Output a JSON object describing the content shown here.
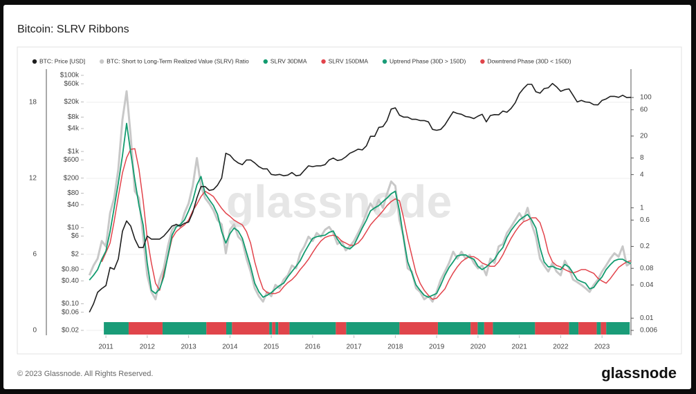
{
  "chart_data": {
    "type": "line",
    "title": "Bitcoin: SLRV Ribbons",
    "watermark": "glassnode",
    "footer": "© 2023 Glassnode. All Rights Reserved.",
    "logo": "glassnode",
    "xlim": [
      2010.53,
      2023.7
    ],
    "xticks": [
      2011,
      2012,
      2013,
      2014,
      2015,
      2016,
      2017,
      2018,
      2019,
      2020,
      2021,
      2022,
      2023
    ],
    "ylim": [
      0.0149,
      145600
    ],
    "log_y": true,
    "yticks": [
      {
        "value": 100000,
        "label": "$100k"
      },
      {
        "value": 60000,
        "label": "$60k"
      },
      {
        "value": 20000,
        "label": "$20k"
      },
      {
        "value": 8000,
        "label": "$8k"
      },
      {
        "value": 4000,
        "label": "$4k"
      },
      {
        "value": 1000,
        "label": "$1k"
      },
      {
        "value": 600,
        "label": "$600"
      },
      {
        "value": 200,
        "label": "$200"
      },
      {
        "value": 80,
        "label": "$80"
      },
      {
        "value": 40,
        "label": "$40"
      },
      {
        "value": 10,
        "label": "$10"
      },
      {
        "value": 6,
        "label": "$6"
      },
      {
        "value": 2,
        "label": "$2"
      },
      {
        "value": 0.8,
        "label": "$0.80"
      },
      {
        "value": 0.4,
        "label": "$0.40"
      },
      {
        "value": 0.1,
        "label": "$0.10"
      },
      {
        "value": 0.06,
        "label": "$0.06"
      },
      {
        "value": 0.02,
        "label": "$0.02"
      }
    ],
    "y2lim": [
      0.0049,
      327
    ],
    "log_y2": true,
    "y2ticks": [
      100,
      60,
      20,
      8,
      4,
      1,
      0.6,
      0.2,
      0.08,
      0.04,
      0.01,
      0.006
    ],
    "y3lim": [
      -0.38,
      20.62
    ],
    "y3ticks": [
      0,
      6,
      12,
      18
    ],
    "grid": true,
    "legend": "top",
    "x": [
      2010.6,
      2010.7,
      2010.8,
      2010.9,
      2011.0,
      2011.1,
      2011.2,
      2011.3,
      2011.4,
      2011.5,
      2011.6,
      2011.7,
      2011.8,
      2011.9,
      2012.0,
      2012.1,
      2012.2,
      2012.3,
      2012.4,
      2012.5,
      2012.6,
      2012.7,
      2012.8,
      2012.9,
      2013.0,
      2013.1,
      2013.2,
      2013.3,
      2013.4,
      2013.5,
      2013.6,
      2013.7,
      2013.8,
      2013.9,
      2014.0,
      2014.1,
      2014.2,
      2014.3,
      2014.4,
      2014.5,
      2014.6,
      2014.7,
      2014.8,
      2014.9,
      2015.0,
      2015.1,
      2015.2,
      2015.3,
      2015.4,
      2015.5,
      2015.6,
      2015.7,
      2015.8,
      2015.9,
      2016.0,
      2016.1,
      2016.2,
      2016.3,
      2016.4,
      2016.5,
      2016.6,
      2016.7,
      2016.8,
      2016.9,
      2017.0,
      2017.1,
      2017.2,
      2017.3,
      2017.4,
      2017.5,
      2017.6,
      2017.7,
      2017.8,
      2017.9,
      2018.0,
      2018.1,
      2018.2,
      2018.3,
      2018.4,
      2018.5,
      2018.6,
      2018.7,
      2018.8,
      2018.9,
      2019.0,
      2019.1,
      2019.2,
      2019.3,
      2019.4,
      2019.5,
      2019.6,
      2019.7,
      2019.8,
      2019.9,
      2020.0,
      2020.1,
      2020.2,
      2020.3,
      2020.4,
      2020.5,
      2020.6,
      2020.7,
      2020.8,
      2020.9,
      2021.0,
      2021.1,
      2021.2,
      2021.3,
      2021.4,
      2021.5,
      2021.6,
      2021.7,
      2021.8,
      2021.9,
      2022.0,
      2022.1,
      2022.2,
      2022.3,
      2022.4,
      2022.5,
      2022.6,
      2022.7,
      2022.8,
      2022.9,
      2023.0,
      2023.1,
      2023.2,
      2023.3,
      2023.4,
      2023.5,
      2023.6,
      2023.7
    ],
    "series": [
      {
        "name": "BTC: Price [USD]",
        "color": "#1e1e1e",
        "axis": "y",
        "values": [
          0.06,
          0.1,
          0.2,
          0.25,
          0.3,
          0.9,
          0.8,
          1.5,
          8,
          15,
          11,
          5,
          3,
          3,
          6,
          5,
          5,
          5,
          6,
          8,
          11,
          12,
          11,
          13,
          14,
          25,
          60,
          120,
          120,
          95,
          100,
          130,
          200,
          900,
          800,
          600,
          500,
          450,
          600,
          600,
          500,
          400,
          350,
          350,
          250,
          240,
          250,
          230,
          240,
          280,
          230,
          240,
          320,
          420,
          400,
          420,
          420,
          450,
          600,
          670,
          580,
          610,
          720,
          900,
          1000,
          1150,
          1100,
          1400,
          2500,
          2500,
          4300,
          4500,
          6500,
          13000,
          14000,
          9000,
          8000,
          8000,
          7000,
          7000,
          6500,
          6500,
          6000,
          3800,
          3600,
          3800,
          5000,
          7500,
          11000,
          10000,
          9500,
          8300,
          8000,
          7300,
          8500,
          9500,
          6000,
          8800,
          9300,
          9200,
          11500,
          10700,
          13500,
          19000,
          33000,
          45000,
          58000,
          58000,
          37000,
          34000,
          45000,
          47000,
          61000,
          50000,
          38000,
          42000,
          44000,
          30000,
          20000,
          22000,
          20000,
          19500,
          17000,
          16800,
          22000,
          24000,
          28000,
          28000,
          26500,
          30000,
          26000,
          26500
        ]
      },
      {
        "name": "BTC: Short to Long-Term Realized Value (SLRV) Ratio",
        "color": "#c8c8c8",
        "axis": "y2",
        "values": [
          0.06,
          0.09,
          0.12,
          0.25,
          0.2,
          0.8,
          1.5,
          5,
          40,
          130,
          20,
          2,
          1.5,
          0.3,
          0.06,
          0.03,
          0.022,
          0.05,
          0.08,
          0.2,
          0.4,
          0.5,
          0.45,
          0.8,
          1.2,
          2.5,
          8,
          2.5,
          1.5,
          1.2,
          0.9,
          0.6,
          0.5,
          0.15,
          0.4,
          0.5,
          0.3,
          0.25,
          0.12,
          0.07,
          0.035,
          0.025,
          0.02,
          0.03,
          0.025,
          0.04,
          0.035,
          0.05,
          0.06,
          0.09,
          0.08,
          0.15,
          0.2,
          0.3,
          0.25,
          0.35,
          0.3,
          0.4,
          0.45,
          0.35,
          0.22,
          0.25,
          0.17,
          0.2,
          0.25,
          0.35,
          0.5,
          0.8,
          1.2,
          0.9,
          1.4,
          1.0,
          1.8,
          3,
          2.5,
          0.6,
          0.3,
          0.08,
          0.07,
          0.035,
          0.03,
          0.022,
          0.025,
          0.02,
          0.03,
          0.05,
          0.07,
          0.1,
          0.16,
          0.12,
          0.16,
          0.12,
          0.14,
          0.1,
          0.08,
          0.09,
          0.06,
          0.12,
          0.1,
          0.2,
          0.22,
          0.35,
          0.45,
          0.6,
          0.8,
          0.6,
          1.0,
          0.5,
          0.3,
          0.12,
          0.09,
          0.07,
          0.1,
          0.07,
          0.06,
          0.11,
          0.08,
          0.05,
          0.045,
          0.04,
          0.035,
          0.03,
          0.04,
          0.05,
          0.07,
          0.09,
          0.12,
          0.15,
          0.13,
          0.2,
          0.09,
          0.1
        ]
      },
      {
        "name": "SLRV 30DMA",
        "color": "#129b6f",
        "axis": "y2",
        "values": [
          0.049,
          0.06,
          0.076,
          0.117,
          0.165,
          0.37,
          1.0,
          2.8,
          8.8,
          34,
          10,
          3.2,
          1.1,
          0.49,
          0.1,
          0.032,
          0.028,
          0.034,
          0.056,
          0.135,
          0.32,
          0.45,
          0.5,
          0.6,
          0.88,
          1.35,
          2.6,
          3.7,
          1.8,
          1.4,
          1.1,
          0.76,
          0.37,
          0.23,
          0.34,
          0.43,
          0.38,
          0.28,
          0.155,
          0.087,
          0.043,
          0.03,
          0.024,
          0.026,
          0.029,
          0.034,
          0.039,
          0.043,
          0.056,
          0.07,
          0.087,
          0.11,
          0.155,
          0.21,
          0.28,
          0.3,
          0.31,
          0.32,
          0.36,
          0.38,
          0.27,
          0.21,
          0.19,
          0.18,
          0.21,
          0.3,
          0.43,
          0.6,
          0.88,
          1.0,
          1.1,
          1.3,
          1.5,
          1.8,
          2.0,
          0.88,
          0.28,
          0.105,
          0.066,
          0.04,
          0.032,
          0.026,
          0.024,
          0.026,
          0.028,
          0.04,
          0.06,
          0.083,
          0.105,
          0.135,
          0.14,
          0.14,
          0.125,
          0.117,
          0.087,
          0.076,
          0.085,
          0.1,
          0.117,
          0.155,
          0.19,
          0.29,
          0.39,
          0.49,
          0.6,
          0.68,
          0.76,
          0.6,
          0.43,
          0.19,
          0.105,
          0.085,
          0.087,
          0.08,
          0.076,
          0.094,
          0.085,
          0.066,
          0.05,
          0.046,
          0.043,
          0.034,
          0.036,
          0.046,
          0.056,
          0.076,
          0.093,
          0.11,
          0.117,
          0.117,
          0.105,
          0.098
        ]
      },
      {
        "name": "SLRV 150DMA",
        "color": "#e2434b",
        "axis": "y2",
        "values": [
          null,
          null,
          null,
          0.105,
          0.155,
          0.23,
          0.57,
          1.6,
          4.3,
          8.1,
          11.5,
          11.8,
          5,
          1.35,
          0.28,
          0.1,
          0.043,
          0.032,
          0.066,
          0.13,
          0.28,
          0.37,
          0.43,
          0.49,
          0.6,
          0.88,
          1.17,
          1.6,
          2.0,
          1.8,
          1.6,
          1.25,
          0.98,
          0.8,
          0.7,
          0.6,
          0.54,
          0.49,
          0.37,
          0.23,
          0.105,
          0.056,
          0.034,
          0.029,
          0.028,
          0.028,
          0.03,
          0.037,
          0.044,
          0.05,
          0.06,
          0.076,
          0.093,
          0.117,
          0.155,
          0.2,
          0.25,
          0.29,
          0.31,
          0.32,
          0.3,
          0.25,
          0.23,
          0.21,
          0.21,
          0.23,
          0.28,
          0.37,
          0.49,
          0.6,
          0.72,
          0.88,
          1.1,
          1.3,
          1.45,
          1.35,
          0.66,
          0.28,
          0.135,
          0.066,
          0.043,
          0.032,
          0.026,
          0.022,
          0.023,
          0.028,
          0.034,
          0.049,
          0.066,
          0.085,
          0.105,
          0.12,
          0.13,
          0.13,
          0.117,
          0.1,
          0.093,
          0.087,
          0.087,
          0.105,
          0.14,
          0.2,
          0.28,
          0.37,
          0.47,
          0.56,
          0.6,
          0.66,
          0.66,
          0.54,
          0.32,
          0.155,
          0.105,
          0.09,
          0.085,
          0.076,
          0.07,
          0.066,
          0.07,
          0.076,
          0.076,
          0.07,
          0.065,
          0.053,
          0.047,
          0.043,
          0.052,
          0.066,
          0.083,
          0.094,
          0.105,
          0.11
        ]
      },
      {
        "name": "Uptrend Phase (30D > 150D)",
        "color": "#1a9c78",
        "ranges": [
          [
            2010.95,
            2011.55
          ],
          [
            2012.37,
            2013.43
          ],
          [
            2013.91,
            2014.05
          ],
          [
            2014.95,
            2015.02
          ],
          [
            2015.1,
            2015.17
          ],
          [
            2015.44,
            2016.56
          ],
          [
            2016.81,
            2018.1
          ],
          [
            2019.03,
            2019.82
          ],
          [
            2019.99,
            2020.15
          ],
          [
            2020.36,
            2021.38
          ],
          [
            2022.2,
            2022.43
          ],
          [
            2022.87,
            2022.97
          ],
          [
            2023.1,
            2023.67
          ]
        ]
      },
      {
        "name": "Downtrend Phase (30D < 150D)",
        "color": "#e0454b",
        "ranges": [
          [
            2011.55,
            2012.37
          ],
          [
            2013.43,
            2013.91
          ],
          [
            2014.05,
            2014.95
          ],
          [
            2015.02,
            2015.1
          ],
          [
            2015.17,
            2015.44
          ],
          [
            2016.56,
            2016.81
          ],
          [
            2018.1,
            2019.03
          ],
          [
            2019.82,
            2019.99
          ],
          [
            2020.15,
            2020.36
          ],
          [
            2021.38,
            2022.2
          ],
          [
            2022.43,
            2022.87
          ],
          [
            2022.97,
            2023.1
          ]
        ]
      }
    ]
  }
}
